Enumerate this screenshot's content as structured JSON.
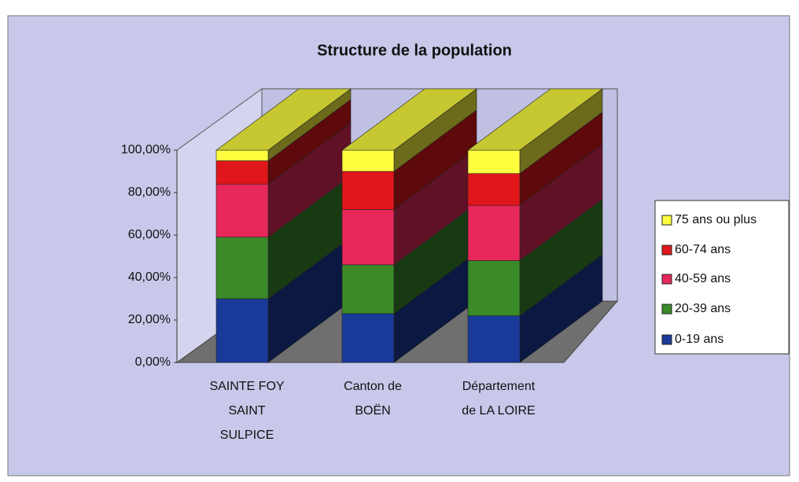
{
  "chart_data": {
    "type": "bar3d_stacked",
    "title": "Structure de la population",
    "categories": [
      [
        "SAINTE FOY",
        "SAINT",
        "SULPICE"
      ],
      [
        "Canton de",
        "BOËN"
      ],
      [
        "Département",
        "de LA LOIRE"
      ]
    ],
    "series": [
      {
        "name": "0-19 ans",
        "color": "#1a3a9a",
        "values": [
          30,
          23,
          22
        ]
      },
      {
        "name": "20-39 ans",
        "color": "#3a8a2a",
        "values": [
          29,
          23,
          26
        ]
      },
      {
        "name": "40-59 ans",
        "color": "#e8285a",
        "values": [
          25,
          26,
          26
        ]
      },
      {
        "name": "60-74 ans",
        "color": "#e0161a",
        "values": [
          11,
          18,
          15
        ]
      },
      {
        "name": "75 ans ou plus",
        "color": "#ffff40",
        "values": [
          5,
          10,
          11
        ]
      }
    ],
    "ylim": [
      0,
      100
    ],
    "yticks": [
      {
        "value": 0,
        "label": "0,00%"
      },
      {
        "value": 20,
        "label": "20,00%"
      },
      {
        "value": 40,
        "label": "40,00%"
      },
      {
        "value": 60,
        "label": "60,00%"
      },
      {
        "value": 80,
        "label": "80,00%"
      },
      {
        "value": 100,
        "label": "100,00%"
      }
    ],
    "legend": "right"
  }
}
